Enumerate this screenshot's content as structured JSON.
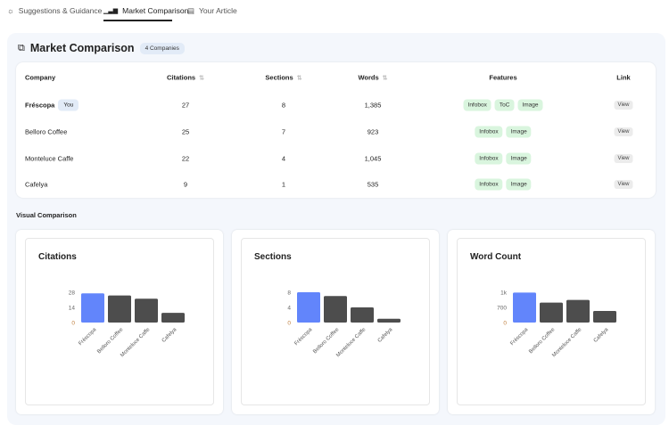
{
  "tabs": [
    {
      "label": "Suggestions & Guidance",
      "icon": "lightbulb-icon"
    },
    {
      "label": "Market Comparison",
      "icon": "bar-chart-icon",
      "active": true
    },
    {
      "label": "Your Article",
      "icon": "document-icon"
    }
  ],
  "panel": {
    "title": "Market Comparison",
    "badge": "4 Companies",
    "icon": "search-compare-icon"
  },
  "table": {
    "headers": [
      "Company",
      "Citations",
      "Sections",
      "Words",
      "Features",
      "Link"
    ],
    "rows": [
      {
        "company": "Fréscopa",
        "you": "You",
        "citations": "27",
        "sections": "8",
        "words": "1,385",
        "features": [
          "Infobox",
          "ToC",
          "Image"
        ],
        "link": "View"
      },
      {
        "company": "Belloro Coffee",
        "citations": "25",
        "sections": "7",
        "words": "923",
        "features": [
          "Infobox",
          "Image"
        ],
        "link": "View"
      },
      {
        "company": "Monteluce Caffe",
        "citations": "22",
        "sections": "4",
        "words": "1,045",
        "features": [
          "Infobox",
          "Image"
        ],
        "link": "View"
      },
      {
        "company": "Cafelya",
        "citations": "9",
        "sections": "1",
        "words": "535",
        "features": [
          "Infobox",
          "Image"
        ],
        "link": "View"
      }
    ]
  },
  "visual_label": "Visual Comparison",
  "colors": {
    "highlight": "#6285fb",
    "bar": "#4d4d4d",
    "feature_bg": "#d9f5de"
  },
  "chart_data": [
    {
      "type": "bar",
      "title": "Citations",
      "categories": [
        "Fréscopa",
        "Belloro Coffee",
        "Monteluce Caffe",
        "Cafelya"
      ],
      "values": [
        27,
        25,
        22,
        9
      ],
      "ylim": [
        0,
        28
      ],
      "yticks": [
        {
          "v": 0,
          "label": "0"
        },
        {
          "v": 14,
          "label": "14"
        },
        {
          "v": 28,
          "label": "28"
        }
      ]
    },
    {
      "type": "bar",
      "title": "Sections",
      "categories": [
        "Fréscopa",
        "Belloro Coffee",
        "Monteluce Caffe",
        "Cafelya"
      ],
      "values": [
        8,
        7,
        4,
        1
      ],
      "ylim": [
        0,
        8
      ],
      "yticks": [
        {
          "v": 0,
          "label": "0"
        },
        {
          "v": 4,
          "label": "4"
        },
        {
          "v": 8,
          "label": "8"
        }
      ]
    },
    {
      "type": "bar",
      "title": "Word Count",
      "categories": [
        "Fréscopa",
        "Belloro Coffee",
        "Monteluce Caffe",
        "Cafelya"
      ],
      "values": [
        1385,
        923,
        1045,
        535
      ],
      "ylim": [
        0,
        1400
      ],
      "yticks": [
        {
          "v": 0,
          "label": "0"
        },
        {
          "v": 700,
          "label": "700"
        },
        {
          "v": 1400,
          "label": "1k"
        }
      ]
    }
  ]
}
